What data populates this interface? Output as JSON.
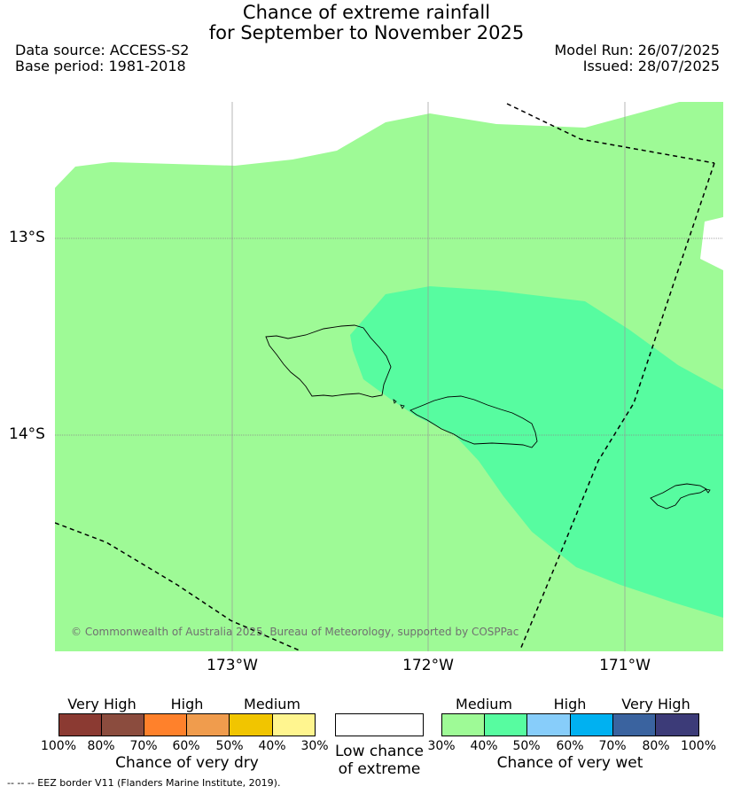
{
  "header": {
    "title_line1": "Chance of extreme rainfall",
    "title_line2": "for September to November 2025",
    "data_source": "Data source: ACCESS-S2",
    "base_period": "Base period: 1981-2018",
    "model_run": "Model Run: 26/07/2025",
    "issued": "Issued: 28/07/2025"
  },
  "map": {
    "lat_labels": [
      "13°S",
      "14°S"
    ],
    "lon_labels": [
      "173°W",
      "172°W",
      "171°W"
    ],
    "copyright": "© Commonwealth of Australia 2025, Bureau of Meteorology, supported by COSPPac",
    "fill_colors": {
      "medium_wet_30_40": "#9efa96",
      "medium_wet_40_50": "#57fca0"
    }
  },
  "legend_dry": {
    "categories": [
      "Very High",
      "High",
      "Medium"
    ],
    "ticks": [
      "100%",
      "80%",
      "70%",
      "60%",
      "50%",
      "40%",
      "30%"
    ],
    "caption": "Chance of very dry",
    "colors": [
      "#8b3a32",
      "#8b4c3e",
      "#ff812b",
      "#f09c4d",
      "#f1c500",
      "#fff58f"
    ]
  },
  "legend_low": {
    "caption_line1": "Low chance",
    "caption_line2": "of extreme",
    "color": "#ffffff"
  },
  "legend_wet": {
    "categories": [
      "Medium",
      "High",
      "Very High"
    ],
    "ticks": [
      "30%",
      "40%",
      "50%",
      "60%",
      "70%",
      "80%",
      "100%"
    ],
    "caption": "Chance of very wet",
    "colors": [
      "#9efa96",
      "#57fca0",
      "#87cdfa",
      "#00b1f1",
      "#3a639f",
      "#3c3b78"
    ]
  },
  "footer": {
    "eez_note": "--  --  -- EEZ border V11 (Flanders Marine Institute, 2019)."
  }
}
